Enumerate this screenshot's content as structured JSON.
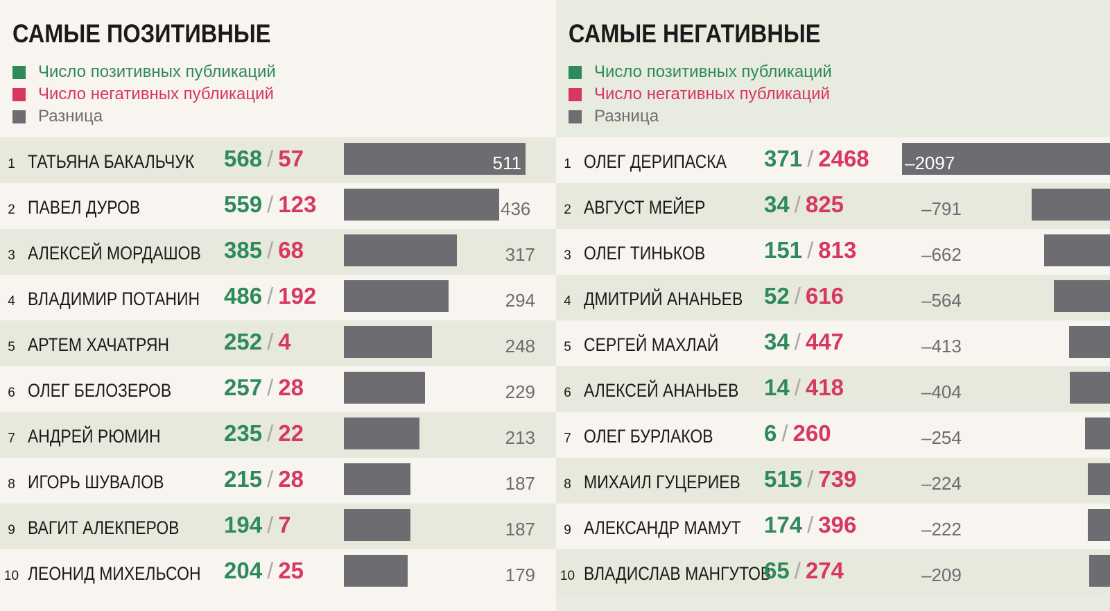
{
  "colors": {
    "positive": "#2e8a5a",
    "negative": "#d6385f",
    "difference": "#6d6d71",
    "band_left": "#e6e9dc",
    "band_right": "#f8f4ef"
  },
  "legend": {
    "positive": "Число позитивных публикаций",
    "negative": "Число негативных публикаций",
    "difference": "Разница"
  },
  "chart_data": [
    {
      "type": "bar",
      "title": "САМЫЕ ПОЗИТИВНЫЕ",
      "legend": [
        "Число позитивных публикаций",
        "Число негативных публикаций",
        "Разница"
      ],
      "xlim": [
        0,
        511
      ],
      "rows": [
        {
          "rank": "1",
          "name": "ТАТЬЯНА БАКАЛЬЧУК",
          "positive": "568",
          "negative": "57",
          "diff_label": "511",
          "diff": 511
        },
        {
          "rank": "2",
          "name": "ПАВЕЛ ДУРОВ",
          "positive": "559",
          "negative": "123",
          "diff_label": "436",
          "diff": 436
        },
        {
          "rank": "3",
          "name": "АЛЕКСЕЙ МОРДАШОВ",
          "positive": "385",
          "negative": "68",
          "diff_label": "317",
          "diff": 317
        },
        {
          "rank": "4",
          "name": "ВЛАДИМИР ПОТАНИН",
          "positive": "486",
          "negative": "192",
          "diff_label": "294",
          "diff": 294
        },
        {
          "rank": "5",
          "name": "АРТЕМ ХАЧАТРЯН",
          "positive": "252",
          "negative": "4",
          "diff_label": "248",
          "diff": 248
        },
        {
          "rank": "6",
          "name": "ОЛЕГ БЕЛОЗЕРОВ",
          "positive": "257",
          "negative": "28",
          "diff_label": "229",
          "diff": 229
        },
        {
          "rank": "7",
          "name": "АНДРЕЙ РЮМИН",
          "positive": "235",
          "negative": "22",
          "diff_label": "213",
          "diff": 213
        },
        {
          "rank": "8",
          "name": "ИГОРЬ ШУВАЛОВ",
          "positive": "215",
          "negative": "28",
          "diff_label": "187",
          "diff": 187
        },
        {
          "rank": "9",
          "name": "ВАГИТ АЛЕКПЕРОВ",
          "positive": "194",
          "negative": "7",
          "diff_label": "187",
          "diff": 187
        },
        {
          "rank": "10",
          "name": "ЛЕОНИД МИХЕЛЬСОН",
          "positive": "204",
          "negative": "25",
          "diff_label": "179",
          "diff": 179
        }
      ]
    },
    {
      "type": "bar",
      "title": "САМЫЕ НЕГАТИВНЫЕ",
      "legend": [
        "Число позитивных публикаций",
        "Число негативных публикаций",
        "Разница"
      ],
      "xlim": [
        -2097,
        0
      ],
      "rows": [
        {
          "rank": "1",
          "name": "ОЛЕГ ДЕРИПАСКА",
          "positive": "371",
          "negative": "2468",
          "diff_label": "–2097",
          "diff": -2097
        },
        {
          "rank": "2",
          "name": "АВГУСТ МЕЙЕР",
          "positive": "34",
          "negative": "825",
          "diff_label": "–791",
          "diff": -791
        },
        {
          "rank": "3",
          "name": "ОЛЕГ ТИНЬКОВ",
          "positive": "151",
          "negative": "813",
          "diff_label": "–662",
          "diff": -662
        },
        {
          "rank": "4",
          "name": "ДМИТРИЙ АНАНЬЕВ",
          "positive": "52",
          "negative": "616",
          "diff_label": "–564",
          "diff": -564
        },
        {
          "rank": "5",
          "name": "СЕРГЕЙ МАХЛАЙ",
          "positive": "34",
          "negative": "447",
          "diff_label": "–413",
          "diff": -413
        },
        {
          "rank": "6",
          "name": "АЛЕКСЕЙ АНАНЬЕВ",
          "positive": "14",
          "negative": "418",
          "diff_label": "–404",
          "diff": -404
        },
        {
          "rank": "7",
          "name": "ОЛЕГ БУРЛАКОВ",
          "positive": "6",
          "negative": "260",
          "diff_label": "–254",
          "diff": -254
        },
        {
          "rank": "8",
          "name": "МИХАИЛ ГУЦЕРИЕВ",
          "positive": "515",
          "negative": "739",
          "diff_label": "–224",
          "diff": -224
        },
        {
          "rank": "9",
          "name": "АЛЕКСАНДР МАМУТ",
          "positive": "174",
          "negative": "396",
          "diff_label": "–222",
          "diff": -222
        },
        {
          "rank": "10",
          "name": "ВЛАДИСЛАВ МАНГУТОВ",
          "positive": "65",
          "negative": "274",
          "diff_label": "–209",
          "diff": -209
        }
      ]
    }
  ]
}
